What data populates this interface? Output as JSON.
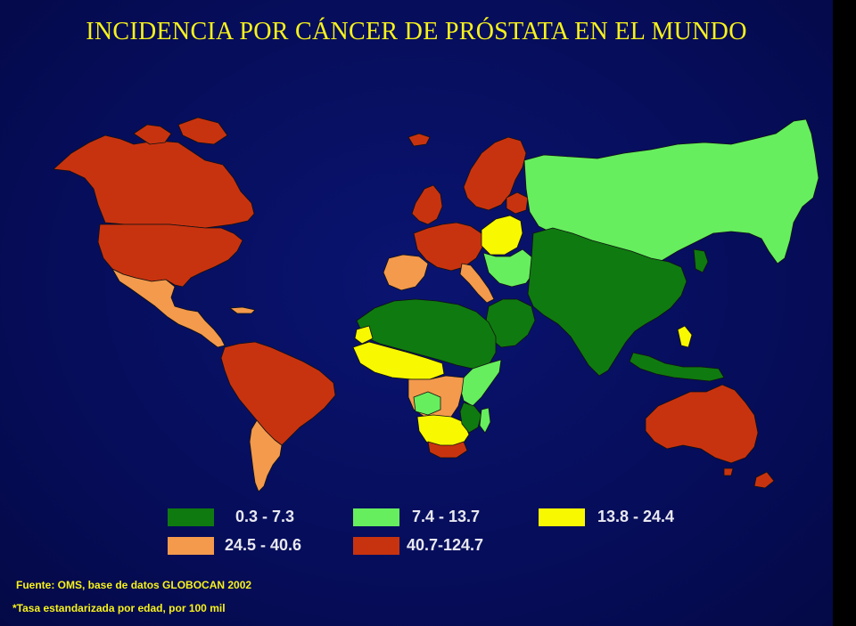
{
  "title": "INCIDENCIA POR CÁNCER DE PRÓSTATA EN EL MUNDO",
  "colors": {
    "band1": "#0f7a10",
    "band2": "#66ee5e",
    "band3": "#f8f800",
    "band4": "#f39a4c",
    "band5": "#c8330f",
    "ocean": "#060d5a",
    "border": "#111111",
    "title": "#f7f21b"
  },
  "legend": [
    {
      "label": "0.3 - 7.3",
      "color": "#0f7a10"
    },
    {
      "label": "7.4 - 13.7",
      "color": "#66ee5e"
    },
    {
      "label": "13.8 - 24.4",
      "color": "#f8f800"
    },
    {
      "label": "24.5 - 40.6",
      "color": "#f39a4c"
    },
    {
      "label": "40.7-124.7",
      "color": "#c8330f"
    }
  ],
  "source": "Fuente: OMS, base de datos GLOBOCAN 2002",
  "note": "*Tasa estandarizada por edad, por 100 mil"
}
